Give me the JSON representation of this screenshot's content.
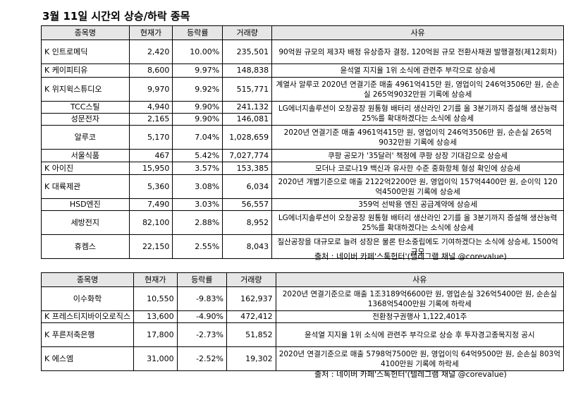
{
  "title": "3월 11일  시간외 상승/하락 종목",
  "headers": {
    "name": "종목명",
    "price": "현재가",
    "rate": "등락률",
    "volume": "거래량",
    "reason": "사유"
  },
  "rising": [
    {
      "name": "K 인트로메딕",
      "price": "2,420",
      "rate": "10.00%",
      "volume": "235,501",
      "reason": "90억원 규모의 제3자 배정 유상증자 결정, 120억원 규모 전환사채권 발행결정(제12회차)",
      "align": "left"
    },
    {
      "name": "K 케이피티유",
      "price": "8,600",
      "rate": "9.97%",
      "volume": "148,838",
      "reason": "윤석열 지지율 1위 소식에 관련주 부각으로 상승세",
      "align": "left"
    },
    {
      "name": "K 위지윅스튜디오",
      "price": "9,970",
      "rate": "9.92%",
      "volume": "515,771",
      "reason": "계열사 알루코 2020년 연결기준 매출 4961억415만 원, 영업이익 246억3506만 원, 순손실 265억9032만원 기록에 상승세",
      "align": "left"
    },
    {
      "name": "TCC스틸",
      "price": "4,940",
      "rate": "9.90%",
      "volume": "241,132",
      "reason": "LG에너지솔루션이 오창공장 원통형 배터리 생산라인 2기를 올 3분기까지 증설해 생산능력 25%를 확대하겠다는 소식에 상승세",
      "align": "center"
    },
    {
      "name": "성문전자",
      "price": "2,165",
      "rate": "9.90%",
      "volume": "146,081",
      "reason": "",
      "align": "center"
    },
    {
      "name": "알루코",
      "price": "5,170",
      "rate": "7.04%",
      "volume": "1,028,659",
      "reason": "2020년 연결기준 매출 4961억415만 원, 영업이익 246억3506만 원, 순손실 265억9032만원 기록에 상승세",
      "align": "center"
    },
    {
      "name": "서울식품",
      "price": "467",
      "rate": "5.42%",
      "volume": "7,027,774",
      "reason": "쿠팡 공모가 '35달러' 책정에 쿠팡 상장 기대감으로 상승세",
      "align": "center"
    },
    {
      "name": "K 아이진",
      "price": "15,950",
      "rate": "3.57%",
      "volume": "153,385",
      "reason": "모더나 코로나19 백신과 유사한 수준 중화항체 형성 확인에 상승세",
      "align": "left"
    },
    {
      "name": "K 대륙제관",
      "price": "5,360",
      "rate": "3.08%",
      "volume": "6,034",
      "reason": "2020년 개별기준으로 매출 2122억2200만 원, 영업이익 157억4400만 원, 순이익 120억4500만원 기록에 상승세",
      "align": "left"
    },
    {
      "name": "HSD엔진",
      "price": "7,490",
      "rate": "3.03%",
      "volume": "56,557",
      "reason": "359억 선박용 엔진 공급계약에 상승세",
      "align": "center"
    },
    {
      "name": "세방전지",
      "price": "82,100",
      "rate": "2.88%",
      "volume": "8,952",
      "reason": "LG에너지솔루션이 오창공장 원통형 배터리 생산라인 2기를 올 3분기까지 증설해 생산능력 25%를 확대하겠다는 소식에 상승세",
      "align": "center"
    },
    {
      "name": "휴켐스",
      "price": "22,150",
      "rate": "2.55%",
      "volume": "8,043",
      "reason": "질산공장을 대규모로 늘려 성장은 물론 탄소중립에도 기여하겠다는 소식에 상승세, 1500억 규모",
      "align": "center"
    }
  ],
  "falling": [
    {
      "name": "이수화학",
      "price": "10,550",
      "rate": "-9.83%",
      "volume": "162,937",
      "reason": "2020년 연결기준으로 매출 1조3189억6600만 원, 영업손실 326억5400만 원, 순손실 1368억5400만원 기록에 하락세",
      "align": "center"
    },
    {
      "name": "K 프레스티지바이오로직스",
      "price": "13,600",
      "rate": "-4.90%",
      "volume": "472,412",
      "reason": "전환청구권행사 1,122,401주",
      "align": "left"
    },
    {
      "name": "K 푸른저축은행",
      "price": "17,800",
      "rate": "-2.73%",
      "volume": "51,852",
      "reason": "윤석열 지지율 1위 소식에 관련주 부각으로 상승 후 투자경고종목지정 공시",
      "align": "left"
    },
    {
      "name": "K 에스엠",
      "price": "31,000",
      "rate": "-2.52%",
      "volume": "19,302",
      "reason": "2020년 연결기준으로 매출 5798억7500만 원, 영업이익 64억9500만 원, 순손실 803억4100만원 기록에 하락세",
      "align": "left"
    }
  ],
  "source": "출처 : 네이버 카페'스톡헌터'(텔레그램 채널 @corevalue)"
}
